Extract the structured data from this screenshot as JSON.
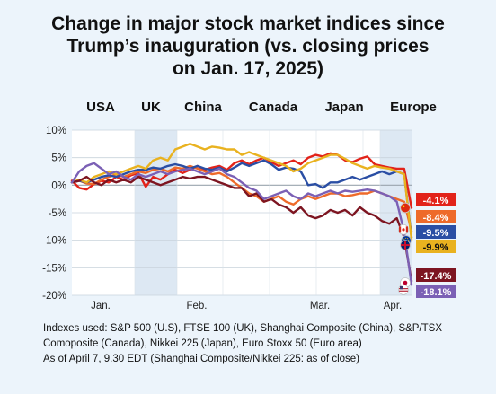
{
  "title_lines": [
    "Change in major stock market indices since",
    "Trump’s inauguration (vs. closing prices",
    "on Jan. 17, 2025)"
  ],
  "notes": [
    "Indexes used: S&P 500 (U.S), FTSE 100 (UK), Shanghai Composite (China), S&P/TSX",
    "Comoposite (Canada), Nikkei 225 (Japan), Euro Stoxx 50 (Euro area)",
    "As of April 7, 9.30 EDT (Shanghai Composite/Nikkei 225: as of close)"
  ],
  "chart_data": {
    "type": "line",
    "title": "Change in major stock market indices since Trump’s inauguration (vs. closing prices on Jan. 17, 2025)",
    "ylim": [
      -20,
      10
    ],
    "y_ticks": [
      10,
      5,
      0,
      -5,
      -10,
      -15,
      -20
    ],
    "y_tick_labels": [
      "10%",
      "5%",
      "0%",
      "-5%",
      "-10%",
      "-15%",
      "-20%"
    ],
    "x_tick_labels": [
      "Jan.",
      "Feb.",
      "Mar.",
      "Apr."
    ],
    "legend_position": "top",
    "legend_labels": [
      "USA",
      "UK",
      "China",
      "Canada",
      "Japan",
      "Europe"
    ],
    "grid": true,
    "series": [
      {
        "name": "China",
        "color": "#e2231a",
        "flag": "china-flag",
        "end_label": "-4.1%",
        "values": [
          0.8,
          -0.5,
          -0.8,
          0.2,
          0.8,
          0.5,
          1.5,
          1.0,
          1.8,
          2.2,
          -0.3,
          1.5,
          1.0,
          2.0,
          2.8,
          2.2,
          2.8,
          3.5,
          2.8,
          3.2,
          3.5,
          2.8,
          4.0,
          4.5,
          3.8,
          4.5,
          5.0,
          4.2,
          3.5,
          4.0,
          4.5,
          3.8,
          5.0,
          5.5,
          5.2,
          5.8,
          5.5,
          4.5,
          4.2,
          4.8,
          5.2,
          3.8,
          3.5,
          3.2,
          3.0,
          3.0,
          -4.1
        ]
      },
      {
        "name": "Canada",
        "color": "#ee6a2a",
        "flag": "canada-flag",
        "end_label": "-8.4%",
        "values": [
          0.5,
          0.8,
          0.3,
          0.2,
          1.0,
          1.5,
          2.0,
          1.5,
          2.0,
          2.5,
          2.2,
          2.8,
          3.0,
          2.5,
          3.2,
          3.0,
          3.5,
          3.0,
          2.5,
          2.0,
          2.2,
          1.5,
          0.5,
          -0.5,
          -1.5,
          -2.0,
          -3.0,
          -2.5,
          -2.0,
          -3.0,
          -3.5,
          -2.5,
          -2.0,
          -2.5,
          -2.0,
          -1.5,
          -1.5,
          -2.0,
          -1.8,
          -1.5,
          -1.5,
          -1.0,
          -1.5,
          -2.0,
          -2.5,
          -3.0,
          -8.4
        ]
      },
      {
        "name": "Europe",
        "color": "#2a4ea4",
        "flag": "eu-flag",
        "end_label": "-9.5%",
        "values": [
          0.5,
          0.8,
          0.5,
          1.0,
          1.5,
          1.8,
          1.5,
          2.0,
          2.5,
          2.8,
          2.8,
          3.2,
          3.0,
          3.5,
          3.8,
          3.5,
          3.0,
          3.5,
          3.0,
          2.8,
          3.2,
          2.5,
          3.2,
          4.0,
          3.5,
          4.0,
          4.5,
          3.8,
          2.8,
          3.2,
          3.0,
          2.5,
          0.0,
          0.2,
          -0.5,
          0.5,
          0.5,
          1.0,
          1.5,
          1.0,
          1.5,
          2.0,
          2.5,
          2.0,
          2.5,
          2.0,
          -9.5
        ]
      },
      {
        "name": "UK",
        "color": "#e9b21f",
        "flag": "uk-flag",
        "end_label": "-9.9%",
        "values": [
          0.5,
          1.0,
          0.5,
          1.5,
          2.0,
          2.5,
          2.0,
          2.5,
          3.0,
          3.5,
          3.0,
          4.5,
          5.0,
          4.5,
          6.5,
          7.0,
          7.5,
          7.0,
          6.5,
          7.0,
          6.8,
          6.5,
          6.5,
          5.5,
          6.0,
          5.5,
          5.0,
          4.5,
          4.0,
          3.5,
          2.5,
          3.0,
          4.0,
          4.5,
          5.0,
          5.5,
          5.5,
          4.8,
          4.0,
          3.5,
          3.0,
          3.5,
          3.2,
          3.0,
          2.5,
          2.0,
          -9.9
        ]
      },
      {
        "name": "Japan",
        "color": "#7d1521",
        "flag": "japan-flag",
        "end_label": "-17.4%",
        "values": [
          0.5,
          0.8,
          1.5,
          0.5,
          0.0,
          1.0,
          0.5,
          1.0,
          0.5,
          1.5,
          1.0,
          0.5,
          0.0,
          0.5,
          1.0,
          1.5,
          1.2,
          1.5,
          1.5,
          1.0,
          0.5,
          0.0,
          -0.5,
          -0.5,
          -2.0,
          -1.5,
          -3.0,
          -2.5,
          -3.5,
          -4.0,
          -5.0,
          -4.0,
          -5.5,
          -6.0,
          -5.5,
          -4.5,
          -5.0,
          -4.5,
          -5.5,
          -4.0,
          -5.0,
          -5.5,
          -6.5,
          -7.0,
          -6.0,
          -9.5,
          -17.4
        ]
      },
      {
        "name": "USA",
        "color": "#7b60b5",
        "flag": "us-flag",
        "end_label": "-18.1%",
        "values": [
          0.5,
          2.5,
          3.5,
          4.0,
          3.0,
          2.0,
          2.5,
          1.5,
          1.0,
          2.0,
          1.5,
          2.0,
          2.5,
          2.0,
          2.5,
          2.8,
          3.0,
          2.5,
          2.0,
          2.5,
          3.0,
          2.0,
          1.5,
          0.5,
          -0.5,
          -1.0,
          -2.5,
          -2.0,
          -1.5,
          -1.0,
          -2.0,
          -2.5,
          -1.5,
          -2.0,
          -1.5,
          -1.0,
          -1.5,
          -1.0,
          -1.2,
          -1.0,
          -0.8,
          -1.0,
          -1.5,
          -2.0,
          -3.0,
          -8.5,
          -18.1
        ]
      }
    ]
  }
}
